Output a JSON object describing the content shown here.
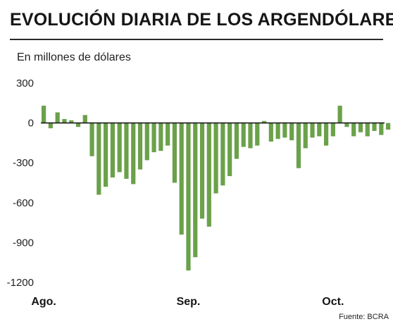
{
  "chart_data": {
    "type": "bar",
    "title": "EVOLUCIÓN DIARIA DE LOS ARGENDÓLARES",
    "ylabel": "En millones de dólares",
    "source": "Fuente: BCRA",
    "yticks": [
      300,
      0,
      -300,
      -600,
      -900,
      -1200
    ],
    "ylim": [
      -1200,
      300
    ],
    "xticks": [
      {
        "label": "Ago.",
        "index": 0
      },
      {
        "label": "Sep.",
        "index": 21
      },
      {
        "label": "Oct.",
        "index": 42
      }
    ],
    "values": [
      130,
      -40,
      80,
      30,
      20,
      -30,
      60,
      -250,
      -540,
      -480,
      -410,
      -370,
      -420,
      -460,
      -350,
      -280,
      -220,
      -210,
      -170,
      -450,
      -840,
      -1110,
      -1010,
      -720,
      -780,
      -530,
      -470,
      -400,
      -270,
      -180,
      -190,
      -170,
      15,
      -140,
      -120,
      -110,
      -130,
      -340,
      -190,
      -110,
      -100,
      -170,
      -100,
      130,
      -30,
      -100,
      -70,
      -100,
      -60,
      -90,
      -50
    ],
    "color": "#6aa14a",
    "grid": false,
    "legend": "none"
  }
}
